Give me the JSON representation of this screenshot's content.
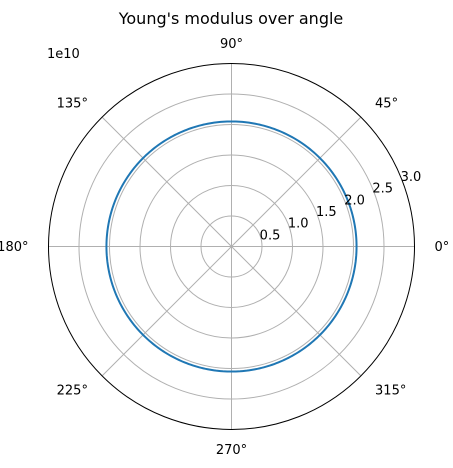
{
  "chart_data": {
    "type": "polar-line",
    "title": "Young's modulus over angle",
    "r_offset_text": "1e10",
    "rlim": [
      0,
      3.0
    ],
    "r_ticks": [
      0.5,
      1.0,
      1.5,
      2.0,
      2.5,
      3.0
    ],
    "r_tick_labels": [
      "0.5",
      "1.0",
      "1.5",
      "2.0",
      "2.5",
      "3.0"
    ],
    "theta_ticks_deg": [
      0,
      45,
      90,
      135,
      180,
      225,
      270,
      315
    ],
    "theta_tick_labels": [
      "0°",
      "45°",
      "90°",
      "135°",
      "180°",
      "225°",
      "270°",
      "315°"
    ],
    "grid": true,
    "series": [
      {
        "color": "#1f77b4",
        "theta_deg": [
          0,
          360
        ],
        "r": [
          2.05,
          2.05
        ]
      }
    ]
  },
  "colors": {
    "grid": "#b0b0b0",
    "spine": "#000000",
    "series": "#1f77b4"
  }
}
